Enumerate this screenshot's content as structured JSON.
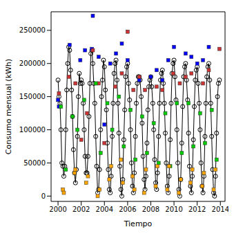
{
  "chart_data": {
    "type": "scatter",
    "x_label": "Tiempo",
    "y_label": "Consumo mensual (kWh)",
    "xlim": [
      1999.4,
      2014.4
    ],
    "xticks": [
      2000,
      2002,
      2004,
      2006,
      2008,
      2010,
      2012,
      2014
    ],
    "ylim": [
      -8000,
      278000
    ],
    "yticks": [
      0,
      50000,
      100000,
      150000,
      200000,
      250000
    ],
    "series": [
      {
        "type": "line",
        "color": "#000000",
        "marker": "circle",
        "x": [
          2000,
          2000.08,
          2000.17,
          2000.25,
          2000.33,
          2000.42,
          2000.5,
          2000.58,
          2000.67,
          2000.75,
          2000.83,
          2000.92,
          2001,
          2001.08,
          2001.17,
          2001.25,
          2001.33,
          2001.42,
          2001.5,
          2001.58,
          2001.67,
          2001.75,
          2001.83,
          2001.92,
          2002,
          2002.08,
          2002.17,
          2002.25,
          2002.33,
          2002.42,
          2002.5,
          2002.58,
          2002.67,
          2002.75,
          2002.83,
          2002.92,
          2003,
          2003.08,
          2003.17,
          2003.25,
          2003.33,
          2003.42,
          2003.5,
          2003.58,
          2003.67,
          2003.75,
          2003.83,
          2003.92,
          2004,
          2004.08,
          2004.17,
          2004.25,
          2004.33,
          2004.42,
          2004.5,
          2004.58,
          2004.67,
          2004.75,
          2004.83,
          2004.92,
          2005,
          2005.08,
          2005.17,
          2005.25,
          2005.33,
          2005.42,
          2005.5,
          2005.58,
          2005.67,
          2005.75,
          2005.83,
          2005.92,
          2006,
          2006.08,
          2006.17,
          2006.25,
          2006.33,
          2006.42,
          2006.5,
          2006.58,
          2006.67,
          2006.75,
          2006.83,
          2006.92,
          2007,
          2007.08,
          2007.17,
          2007.25,
          2007.33,
          2007.42,
          2007.5,
          2007.58,
          2007.67,
          2007.75,
          2007.83,
          2007.92,
          2008,
          2008.08,
          2008.17,
          2008.25,
          2008.33,
          2008.42,
          2008.5,
          2008.58,
          2008.67,
          2008.75,
          2008.83,
          2008.92,
          2009,
          2009.08,
          2009.17,
          2009.25,
          2009.33,
          2009.42,
          2009.5,
          2009.58,
          2009.67,
          2009.75,
          2009.83,
          2009.92,
          2010,
          2010.08,
          2010.17,
          2010.25,
          2010.33,
          2010.42,
          2010.5,
          2010.58,
          2010.67,
          2010.75,
          2010.83,
          2010.92,
          2011,
          2011.08,
          2011.17,
          2011.25,
          2011.33,
          2011.42,
          2011.5,
          2011.58,
          2011.67,
          2011.75,
          2011.83,
          2011.92,
          2012,
          2012.08,
          2012.17,
          2012.25,
          2012.33,
          2012.42,
          2012.5,
          2012.58,
          2012.67,
          2012.75,
          2012.83,
          2012.92,
          2013,
          2013.08,
          2013.17,
          2013.25,
          2013.33,
          2013.42,
          2013.5,
          2013.58,
          2013.67,
          2013.75,
          2013.83,
          2013.92
        ],
        "values": [
          175000,
          150000,
          140000,
          100000,
          50000,
          45000,
          30000,
          45000,
          100000,
          160000,
          200000,
          225000,
          220000,
          190000,
          160000,
          120000,
          70000,
          35000,
          20000,
          40000,
          90000,
          150000,
          185000,
          170000,
          175000,
          170000,
          140000,
          100000,
          60000,
          35000,
          35000,
          60000,
          120000,
          170000,
          215000,
          220000,
          200000,
          170000,
          140000,
          90000,
          45000,
          5000,
          10000,
          40000,
          100000,
          150000,
          175000,
          205000,
          195000,
          160000,
          130000,
          80000,
          40000,
          10000,
          5000,
          30000,
          90000,
          140000,
          185000,
          200000,
          205000,
          175000,
          140000,
          95000,
          45000,
          10000,
          0,
          25000,
          85000,
          130000,
          180000,
          195000,
          200000,
          170000,
          145000,
          100000,
          50000,
          15000,
          5000,
          35000,
          90000,
          140000,
          170000,
          180000,
          180000,
          175000,
          150000,
          110000,
          60000,
          25000,
          10000,
          30000,
          80000,
          130000,
          165000,
          175000,
          180000,
          165000,
          140000,
          100000,
          55000,
          20000,
          10000,
          35000,
          90000,
          140000,
          175000,
          185000,
          190000,
          170000,
          140000,
          95000,
          50000,
          15000,
          5000,
          30000,
          85000,
          140000,
          185000,
          200000,
          205000,
          180000,
          145000,
          100000,
          50000,
          10000,
          0,
          25000,
          80000,
          135000,
          180000,
          195000,
          200000,
          175000,
          145000,
          95000,
          45000,
          15000,
          5000,
          30000,
          85000,
          135000,
          175000,
          190000,
          195000,
          170000,
          140000,
          100000,
          50000,
          15000,
          5000,
          30000,
          90000,
          140000,
          180000,
          195000,
          200000,
          175000,
          140000,
          90000,
          40000,
          5000,
          0,
          30000,
          95000,
          150000,
          170000,
          175000
        ]
      },
      {
        "type": "scatter",
        "color": "#0000ff",
        "marker": "square",
        "x": [
          2000,
          2000.08,
          2001,
          2001.92,
          2002.33,
          2002.92,
          2003,
          2003.5,
          2004,
          2004.5,
          2005,
          2005.5,
          2006,
          2007,
          2008,
          2008.5,
          2009,
          2009.5,
          2010,
          2011,
          2011.5,
          2012,
          2012.5,
          2013
        ],
        "values": [
          145000,
          135000,
          228000,
          205000,
          220000,
          222000,
          272000,
          210000,
          108000,
          200000,
          215000,
          230000,
          205000,
          175000,
          180000,
          190000,
          175000,
          205000,
          225000,
          215000,
          210000,
          200000,
          205000,
          225000
        ]
      },
      {
        "type": "scatter",
        "color": "#cc3333",
        "marker": "square",
        "x": [
          2000.08,
          2000.92,
          2001.5,
          2002,
          2002.5,
          2003,
          2003.5,
          2004,
          2004.92,
          2005.5,
          2006,
          2006.5,
          2007,
          2007.5,
          2008.5,
          2009,
          2009.92,
          2010.5,
          2011,
          2011.5,
          2012.5,
          2013,
          2013.92
        ],
        "values": [
          155000,
          180000,
          170000,
          85000,
          125000,
          220000,
          170000,
          80000,
          165000,
          185000,
          248000,
          160000,
          180000,
          160000,
          165000,
          160000,
          185000,
          170000,
          180000,
          185000,
          170000,
          190000,
          222000
        ]
      },
      {
        "type": "scatter",
        "color": "#00cc00",
        "marker": "square",
        "x": [
          2000.25,
          2000.67,
          2001.25,
          2001.67,
          2002.25,
          2003.25,
          2003.67,
          2004.25,
          2004.67,
          2005.25,
          2005.67,
          2006.25,
          2006.67,
          2007.25,
          2007.67,
          2008.25,
          2008.67,
          2009.25,
          2009.67,
          2010.25,
          2010.67,
          2011.25,
          2011.67,
          2012.25,
          2012.67,
          2013.25,
          2013.67
        ],
        "values": [
          135000,
          40000,
          120000,
          100000,
          145000,
          170000,
          65000,
          140000,
          100000,
          150000,
          75000,
          130000,
          55000,
          120000,
          65000,
          110000,
          50000,
          125000,
          45000,
          140000,
          65000,
          140000,
          75000,
          125000,
          80000,
          130000,
          55000
        ]
      },
      {
        "type": "scatter",
        "color": "#ffa500",
        "marker": "square",
        "x": [
          2000.42,
          2000.5,
          2001.42,
          2001.5,
          2002.42,
          2002.58,
          2003.42,
          2003.58,
          2004.42,
          2004.58,
          2005.42,
          2005.58,
          2006.42,
          2006.58,
          2007.42,
          2007.58,
          2008.42,
          2008.58,
          2009.42,
          2009.58,
          2010.42,
          2010.58,
          2011.42,
          2011.58,
          2012.42,
          2012.58,
          2013.42,
          2013.58
        ],
        "values": [
          10000,
          5000,
          35000,
          40000,
          20000,
          30000,
          0,
          10000,
          25000,
          45000,
          55000,
          20000,
          30000,
          10000,
          5000,
          40000,
          15000,
          45000,
          10000,
          45000,
          5000,
          25000,
          20000,
          40000,
          15000,
          35000,
          10000,
          40000
        ]
      }
    ]
  }
}
